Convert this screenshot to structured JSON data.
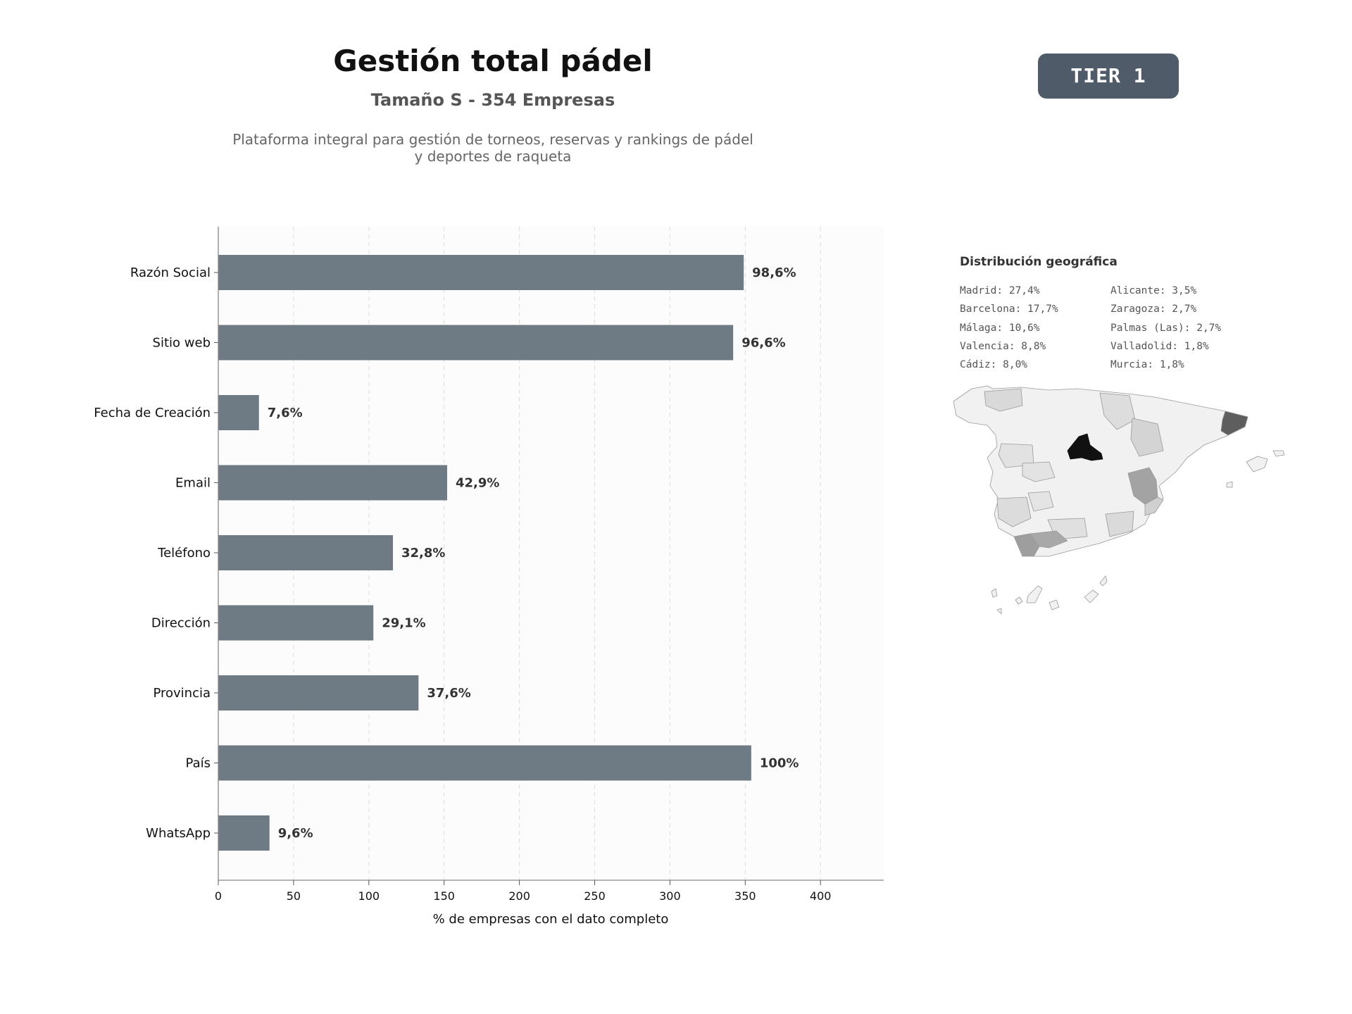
{
  "header": {
    "title": "Gestión total pádel",
    "subtitle": "Tamaño S - 354 Empresas",
    "description": "Plataforma integral para gestión de torneos, reservas y rankings de pádel y deportes de raqueta",
    "tier_badge": "TIER 1"
  },
  "colors": {
    "bar": "#6e7a84",
    "plot_bg": "#fcfcfc",
    "badge": "#4f5b68",
    "label": "#333333"
  },
  "chart_data": {
    "type": "bar",
    "orientation": "horizontal",
    "categories": [
      "Razón Social",
      "Sitio web",
      "Fecha de Creación",
      "Email",
      "Teléfono",
      "Dirección",
      "Provincia",
      "País",
      "WhatsApp"
    ],
    "values": [
      349,
      342,
      27,
      152,
      116,
      103,
      133,
      354,
      34
    ],
    "value_labels": [
      "98,6%",
      "96,6%",
      "7,6%",
      "42,9%",
      "32,8%",
      "29,1%",
      "37,6%",
      "100%",
      "9,6%"
    ],
    "xlabel": "% de empresas con el dato completo",
    "xticks": [
      0,
      50,
      100,
      150,
      200,
      250,
      300,
      350,
      400
    ],
    "xlim": [
      0,
      442
    ],
    "grid": "vertical dashed"
  },
  "geo": {
    "title": "Distribución geográfica",
    "left_column": [
      "Madrid: 27,4%",
      "Barcelona: 17,7%",
      "Málaga: 10,6%",
      "Valencia: 8,8%",
      "Cádiz: 8,0%"
    ],
    "right_column": [
      "Alicante: 3,5%",
      "Zaragoza: 2,7%",
      "Palmas (Las): 2,7%",
      "Valladolid: 1,8%",
      "Murcia: 1,8%"
    ]
  }
}
